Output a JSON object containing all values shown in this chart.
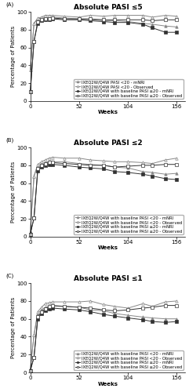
{
  "panels": [
    {
      "label": "(A)",
      "title": "Absolute PASI ≤5",
      "ylim": [
        0,
        100
      ],
      "yticks": [
        0,
        20,
        40,
        60,
        80,
        100
      ],
      "series": [
        {
          "name": "IXEQ2W/Q4W PASI <20 - mNRI",
          "x": [
            0,
            4,
            8,
            12,
            16,
            20,
            24,
            36,
            52,
            64,
            78,
            90,
            104,
            120,
            130,
            144,
            156
          ],
          "y": [
            35,
            87,
            92,
            93,
            94,
            94,
            94,
            93,
            92,
            91,
            90,
            90,
            89,
            87,
            86,
            84,
            83
          ],
          "marker": "^",
          "color": "#888888",
          "linestyle": "-",
          "filled": true
        },
        {
          "name": "IXEQ2W/Q4W PASI <20 - Observed",
          "x": [
            0,
            4,
            8,
            12,
            16,
            20,
            24,
            36,
            52,
            64,
            78,
            90,
            104,
            120,
            130,
            144,
            156
          ],
          "y": [
            35,
            87,
            93,
            94,
            96,
            96,
            96,
            95,
            94,
            96,
            95,
            96,
            96,
            96,
            94,
            96,
            95
          ],
          "marker": "^",
          "color": "#888888",
          "linestyle": "-",
          "filled": false
        },
        {
          "name": "IXEQ2W/Q4W with baseline PASI ≥20 - mNRI",
          "x": [
            0,
            4,
            8,
            12,
            16,
            20,
            24,
            36,
            52,
            64,
            78,
            90,
            104,
            120,
            130,
            144,
            156
          ],
          "y": [
            10,
            67,
            87,
            90,
            91,
            91,
            92,
            91,
            91,
            90,
            89,
            88,
            88,
            86,
            82,
            77,
            77
          ],
          "marker": "s",
          "color": "#333333",
          "linestyle": "-",
          "filled": true
        },
        {
          "name": "IXEQ2W/Q4W with baseline PASI ≥20 - Observed",
          "x": [
            0,
            4,
            8,
            12,
            16,
            20,
            24,
            36,
            52,
            64,
            78,
            90,
            104,
            120,
            130,
            144,
            156
          ],
          "y": [
            10,
            67,
            89,
            91,
            92,
            92,
            93,
            92,
            92,
            92,
            91,
            91,
            91,
            91,
            90,
            91,
            91
          ],
          "marker": "s",
          "color": "#333333",
          "linestyle": "-",
          "filled": false
        }
      ],
      "legend_labels": [
        "IXEQ2W/Q4W PASI <20 - mNRI",
        "IXEQ2W/Q4W PASI <20 - Observed",
        "IXEQ2W/Q4W with baseline PASI ≥20 - mNRI",
        "IXEQ2W/Q4W with baseline PASI ≥20 - Observed"
      ]
    },
    {
      "label": "(B)",
      "title": "Absolute PASI ≤2",
      "ylim": [
        0,
        100
      ],
      "yticks": [
        0,
        20,
        40,
        60,
        80,
        100
      ],
      "series": [
        {
          "name": "IXEQ2W/Q4W with baseline PASI <20 - mNRI",
          "x": [
            0,
            4,
            8,
            12,
            16,
            20,
            24,
            36,
            52,
            64,
            78,
            90,
            104,
            120,
            130,
            144,
            156
          ],
          "y": [
            5,
            68,
            79,
            82,
            83,
            84,
            84,
            84,
            82,
            81,
            80,
            78,
            77,
            73,
            72,
            70,
            71
          ],
          "marker": "^",
          "color": "#888888",
          "linestyle": "-",
          "filled": true
        },
        {
          "name": "IXEQ2W/Q4W with baseline PASI <20 - Observed",
          "x": [
            0,
            4,
            8,
            12,
            16,
            20,
            24,
            36,
            52,
            64,
            78,
            90,
            104,
            120,
            130,
            144,
            156
          ],
          "y": [
            5,
            68,
            81,
            84,
            86,
            88,
            89,
            88,
            88,
            86,
            85,
            84,
            84,
            83,
            82,
            86,
            88
          ],
          "marker": "^",
          "color": "#888888",
          "linestyle": "-",
          "filled": false
        },
        {
          "name": "IXEQ2W/Q4W with baseline PASI ≥20 - mNRI",
          "x": [
            0,
            4,
            8,
            12,
            16,
            20,
            24,
            36,
            52,
            64,
            78,
            90,
            104,
            120,
            130,
            144,
            156
          ],
          "y": [
            3,
            21,
            74,
            78,
            80,
            81,
            81,
            80,
            78,
            77,
            76,
            73,
            72,
            70,
            68,
            65,
            64
          ],
          "marker": "s",
          "color": "#333333",
          "linestyle": "-",
          "filled": true
        },
        {
          "name": "IXEQ2W/Q4W with baseline PASI ≥20 - Observed",
          "x": [
            0,
            4,
            8,
            12,
            16,
            20,
            24,
            36,
            52,
            64,
            78,
            90,
            104,
            120,
            130,
            144,
            156
          ],
          "y": [
            3,
            21,
            76,
            80,
            82,
            83,
            83,
            82,
            81,
            80,
            80,
            78,
            79,
            80,
            80,
            81,
            81
          ],
          "marker": "s",
          "color": "#333333",
          "linestyle": "-",
          "filled": false
        }
      ],
      "legend_labels": [
        "IXEQ2W/Q4W with baseline PASI <20 - mNRI",
        "IXEQ2W/Q4W with baseline PASI <20 - Observed",
        "IXEQ2W/Q4W with baseline PASI ≥20 - mNRI",
        "IXEQ2W/Q4W with baseline PASI ≥20 - Observed"
      ]
    },
    {
      "label": "(C)",
      "title": "Absolute PASI ≤1",
      "ylim": [
        0,
        100
      ],
      "yticks": [
        0,
        20,
        40,
        60,
        80,
        100
      ],
      "series": [
        {
          "name": "IXEQ2W/Q4W with baseline PASI <20 - mNRI",
          "x": [
            0,
            4,
            8,
            12,
            16,
            20,
            24,
            36,
            52,
            64,
            78,
            90,
            104,
            120,
            130,
            144,
            156
          ],
          "y": [
            3,
            42,
            66,
            70,
            73,
            74,
            74,
            74,
            73,
            70,
            69,
            66,
            64,
            62,
            61,
            60,
            60
          ],
          "marker": "^",
          "color": "#888888",
          "linestyle": "-",
          "filled": true
        },
        {
          "name": "IXEQ2W/Q4W with baseline PASI <20 - Observed",
          "x": [
            0,
            4,
            8,
            12,
            16,
            20,
            24,
            36,
            52,
            64,
            78,
            90,
            104,
            120,
            130,
            144,
            156
          ],
          "y": [
            3,
            42,
            68,
            73,
            77,
            78,
            79,
            79,
            79,
            80,
            76,
            74,
            72,
            77,
            74,
            79,
            80
          ],
          "marker": "^",
          "color": "#888888",
          "linestyle": "-",
          "filled": false
        },
        {
          "name": "IXEQ2W/Q4W with baseline PASI ≥20 - mNRI",
          "x": [
            0,
            4,
            8,
            12,
            16,
            20,
            24,
            36,
            52,
            64,
            78,
            90,
            104,
            120,
            130,
            144,
            156
          ],
          "y": [
            2,
            17,
            60,
            66,
            69,
            71,
            72,
            71,
            70,
            68,
            65,
            63,
            61,
            59,
            57,
            56,
            57
          ],
          "marker": "s",
          "color": "#333333",
          "linestyle": "-",
          "filled": true
        },
        {
          "name": "IXEQ2W/Q4W with baseline PASI ≥20 - Observed",
          "x": [
            0,
            4,
            8,
            12,
            16,
            20,
            24,
            36,
            52,
            64,
            78,
            90,
            104,
            120,
            130,
            144,
            156
          ],
          "y": [
            2,
            17,
            62,
            68,
            71,
            74,
            75,
            74,
            73,
            72,
            70,
            69,
            70,
            72,
            73,
            75,
            75
          ],
          "marker": "s",
          "color": "#333333",
          "linestyle": "-",
          "filled": false
        }
      ],
      "legend_labels": [
        "IXEQ2W/Q4W with baseline PASI <20 - mNRI",
        "IXEQ2W/Q4W with baseline PASI <20 - Observed",
        "IXEQ2W/Q4W with baseline PASI ≥20 - mNRI",
        "IXEQ2W/Q4W with baseline PASI ≥20 - Observed"
      ]
    }
  ],
  "xticks": [
    0,
    52,
    104,
    156
  ],
  "xlabel": "Weeks",
  "ylabel": "Percentage of Patients",
  "background_color": "#ffffff",
  "title_fontsize": 6.5,
  "axis_fontsize": 5,
  "tick_fontsize": 5,
  "legend_fontsize": 3.8,
  "marker_size": 2.5,
  "linewidth": 0.7
}
